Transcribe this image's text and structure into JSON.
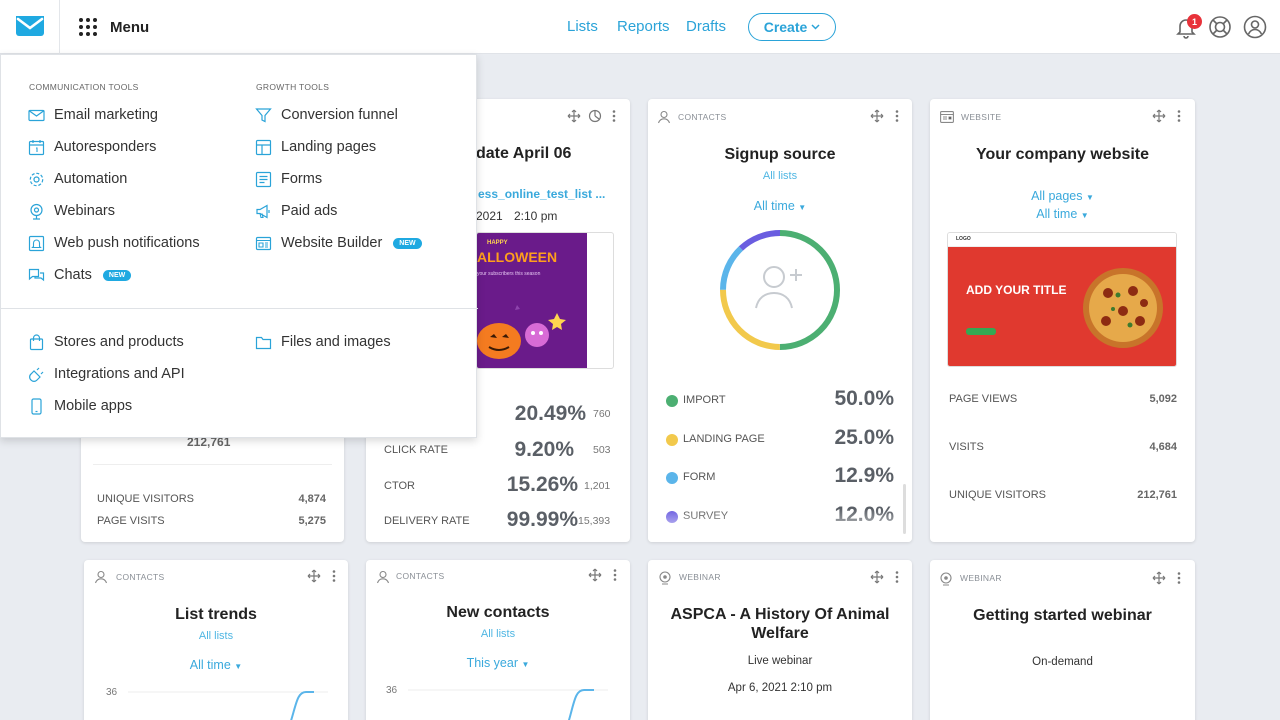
{
  "colors": {
    "accent": "#2aa3d8",
    "badge": "#e8323a",
    "new_badge": "#1fa9e1"
  },
  "topbar": {
    "menu_label": "Menu",
    "nav": [
      "Lists",
      "Reports",
      "Drafts"
    ],
    "create_label": "Create",
    "notification_count": "1",
    "icons": [
      "envelope-logo-icon",
      "grid-icon",
      "bell-icon",
      "help-icon",
      "profile-icon"
    ]
  },
  "menu": {
    "communication_heading": "COMMUNICATION TOOLS",
    "growth_heading": "GROWTH TOOLS",
    "communication": [
      "Email marketing",
      "Autoresponders",
      "Automation",
      "Webinars",
      "Web push notifications",
      "Chats"
    ],
    "growth": [
      "Conversion funnel",
      "Landing pages",
      "Forms",
      "Paid ads",
      "Website Builder"
    ],
    "new_badge": "NEW",
    "other_left": [
      "Stores and products",
      "Integrations and API",
      "Mobile apps"
    ],
    "other_right": [
      "Files and images"
    ]
  },
  "cards": {
    "landing": {
      "value_hidden": "212,761",
      "rows": [
        {
          "label": "UNIQUE VISITORS",
          "value": "4,874"
        },
        {
          "label": "PAGE VISITS",
          "value": "5,275"
        }
      ]
    },
    "newsletter": {
      "title": "date April 06",
      "list": "ess_online_test_list ...",
      "date": "2021",
      "time": "2:10 pm",
      "thumb_small": "HAPPY",
      "thumb_big": "ALLOWEEN",
      "thumb_sub": "your subscribers this season",
      "stats": [
        {
          "label": "",
          "value": "20.49%",
          "count": "760"
        },
        {
          "label": "CLICK RATE",
          "value": "9.20%",
          "count": "503"
        },
        {
          "label": "CTOR",
          "value": "15.26%",
          "count": "1,201"
        },
        {
          "label": "DELIVERY RATE",
          "value": "99.99%",
          "count": "15,393"
        }
      ]
    },
    "signup": {
      "tag": "CONTACTS",
      "title": "Signup source",
      "link": "All lists",
      "dropdown": "All time",
      "chart_data": {
        "type": "pie",
        "categories": [
          "IMPORT",
          "LANDING PAGE",
          "FORM",
          "SURVEY"
        ],
        "values": [
          50.0,
          25.0,
          12.9,
          12.0
        ],
        "colors": [
          "#4caf72",
          "#f2c94c",
          "#5bb5ea",
          "#6a5de0"
        ]
      },
      "legend": [
        {
          "label": "IMPORT",
          "value": "50.0%",
          "color": "#4caf72"
        },
        {
          "label": "LANDING PAGE",
          "value": "25.0%",
          "color": "#f2c94c"
        },
        {
          "label": "FORM",
          "value": "12.9%",
          "color": "#5bb5ea"
        },
        {
          "label": "SURVEY",
          "value": "12.0%",
          "color": "#6a5de0"
        }
      ]
    },
    "website": {
      "tag": "WEBSITE",
      "title": "Your company website",
      "dd_pages": "All pages",
      "dd_time": "All time",
      "thumb_title": "ADD YOUR TITLE",
      "thumb_logo": "LOGO",
      "rows": [
        {
          "label": "PAGE VIEWS",
          "value": "5,092"
        },
        {
          "label": "VISITS",
          "value": "4,684"
        },
        {
          "label": "UNIQUE VISITORS",
          "value": "212,761"
        }
      ]
    },
    "list_trends": {
      "tag": "CONTACTS",
      "title": "List trends",
      "link": "All lists",
      "dropdown": "All time",
      "y_tick": "36"
    },
    "new_contacts": {
      "tag": "CONTACTS",
      "title": "New contacts",
      "link": "All lists",
      "dropdown": "This year",
      "y_tick": "36"
    },
    "webinar1": {
      "tag": "WEBINAR",
      "title": "ASPCA - A History Of Animal Welfare",
      "subtitle": "Live webinar",
      "date": "Apr 6,  2021 2:10 pm"
    },
    "webinar2": {
      "tag": "WEBINAR",
      "title": "Getting started webinar",
      "subtitle": "On-demand"
    }
  }
}
